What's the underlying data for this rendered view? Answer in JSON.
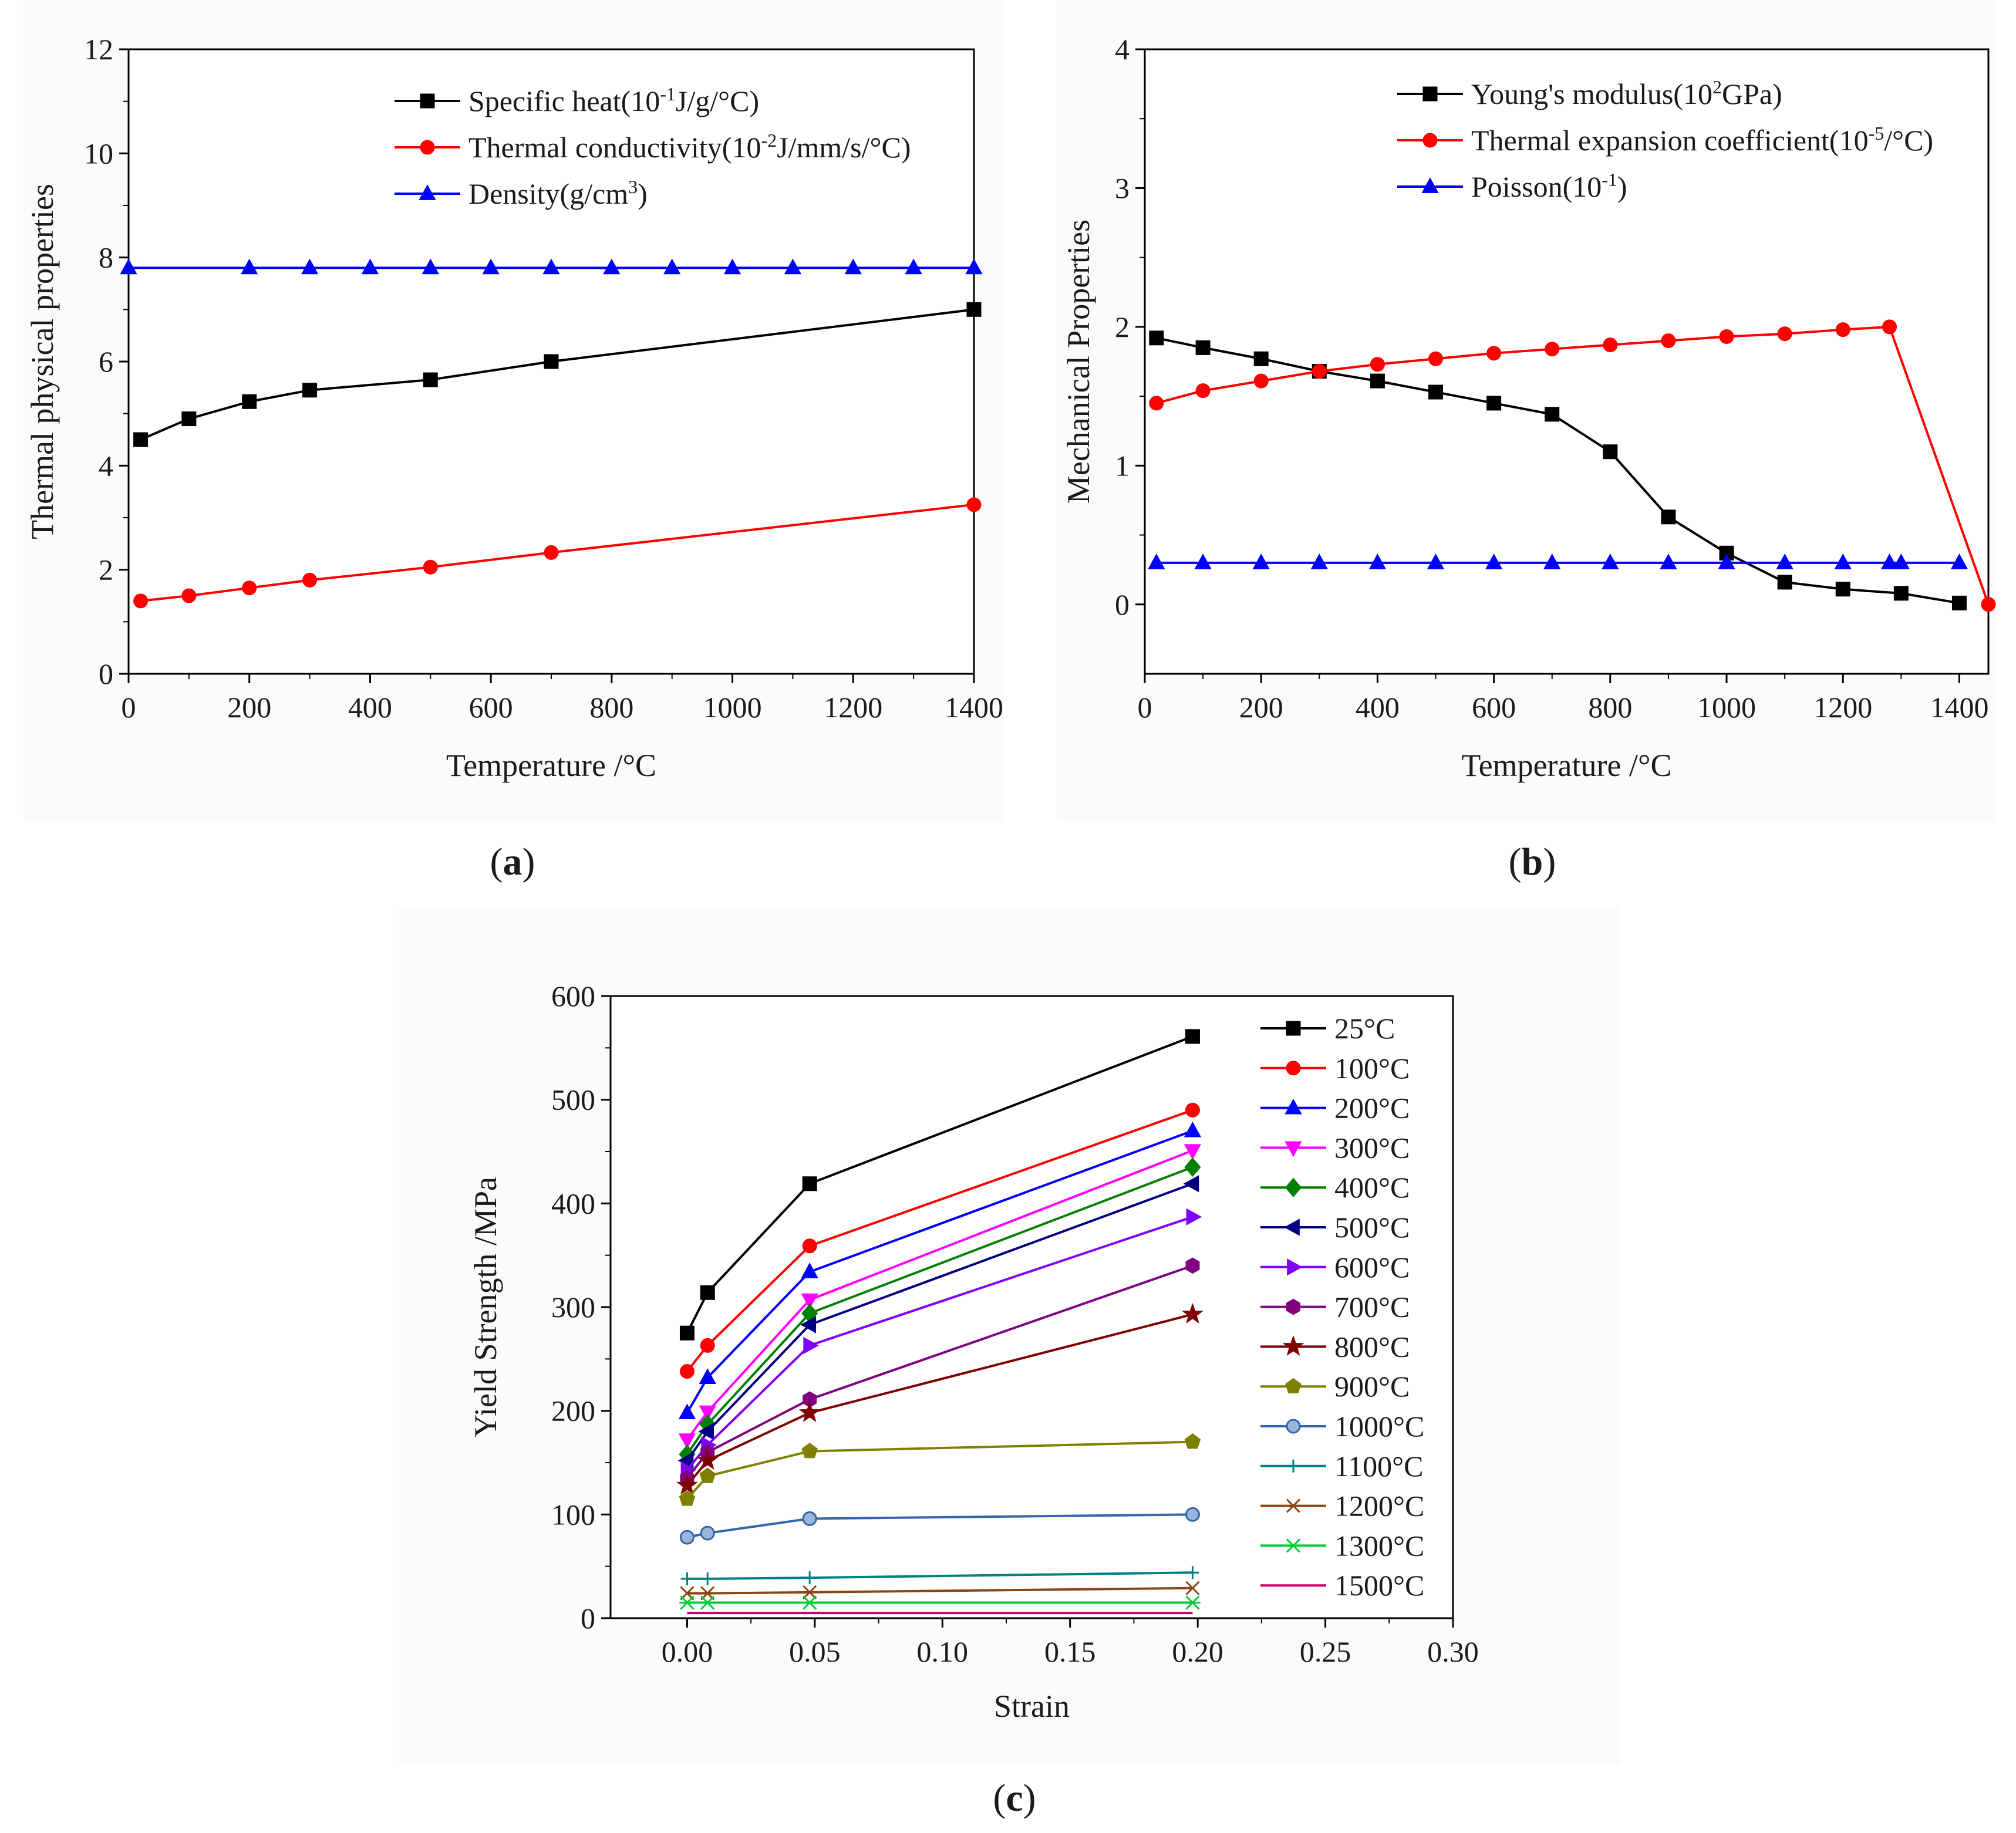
{
  "chart_data": [
    {
      "id": "a",
      "type": "line",
      "panel_label": "(a)",
      "xlabel": "Temperature /°C",
      "ylabel": "Thermal physical properties",
      "xlim": [
        0,
        1400
      ],
      "ylim": [
        0,
        12
      ],
      "xticks": [
        0,
        200,
        400,
        600,
        800,
        1000,
        1200,
        1400
      ],
      "yticks": [
        0,
        2,
        4,
        6,
        8,
        10,
        12
      ],
      "legend_position": "top-right",
      "series": [
        {
          "name": "Specific heat(10-1J/g/°C)",
          "legend": {
            "base": "Specific heat(10",
            "sup": "-1",
            "rest": "J/g/°C)"
          },
          "color": "#000000",
          "marker": "square",
          "x": [
            20,
            100,
            200,
            300,
            500,
            700,
            1400
          ],
          "y": [
            4.5,
            4.9,
            5.23,
            5.45,
            5.65,
            6.0,
            7.0
          ]
        },
        {
          "name": "Thermal conductivity(10-2J/mm/s/°C)",
          "legend": {
            "base": "Thermal conductivity(10",
            "sup": "-2",
            "rest": "J/mm/s/°C)"
          },
          "color": "#ff0000",
          "marker": "circle",
          "x": [
            20,
            100,
            200,
            300,
            500,
            700,
            1400
          ],
          "y": [
            1.4,
            1.5,
            1.65,
            1.8,
            2.05,
            2.33,
            3.25
          ]
        },
        {
          "name": "Density(g/cm3)",
          "legend": {
            "base": "Density(g/cm",
            "sup": "3",
            "rest": ")"
          },
          "color": "#0000ff",
          "marker": "triangle-up",
          "x": [
            0,
            200,
            300,
            400,
            500,
            600,
            700,
            800,
            900,
            1000,
            1100,
            1200,
            1300,
            1400
          ],
          "y": [
            7.8,
            7.8,
            7.8,
            7.8,
            7.8,
            7.8,
            7.8,
            7.8,
            7.8,
            7.8,
            7.8,
            7.8,
            7.8,
            7.8
          ]
        }
      ]
    },
    {
      "id": "b",
      "type": "line",
      "panel_label": "(b)",
      "xlabel": "Temperature /°C",
      "ylabel": "Mechanical Properties",
      "xlim": [
        0,
        1450
      ],
      "ylim": [
        -0.5,
        4
      ],
      "xticks": [
        0,
        200,
        400,
        600,
        800,
        1000,
        1200,
        1400
      ],
      "yticks": [
        0,
        1,
        2,
        3,
        4
      ],
      "legend_position": "top-right",
      "series": [
        {
          "name": "Young's modulus(102GPa)",
          "legend": {
            "base": "Young's modulus(10",
            "sup": "2",
            "rest": "GPa)"
          },
          "color": "#000000",
          "marker": "square",
          "x": [
            20,
            100,
            200,
            300,
            400,
            500,
            600,
            700,
            800,
            900,
            1000,
            1100,
            1200,
            1300,
            1400
          ],
          "y": [
            1.92,
            1.85,
            1.77,
            1.68,
            1.61,
            1.53,
            1.45,
            1.37,
            1.1,
            0.63,
            0.37,
            0.16,
            0.11,
            0.08,
            0.01
          ]
        },
        {
          "name": "Thermal expansion coefficient(10-5/°C)",
          "legend": {
            "base": "Thermal expansion coefficient(10",
            "sup": "-5",
            "rest": "/°C)"
          },
          "color": "#ff0000",
          "marker": "circle",
          "x": [
            20,
            100,
            200,
            300,
            400,
            500,
            600,
            700,
            800,
            900,
            1000,
            1100,
            1200,
            1280,
            1450
          ],
          "y": [
            1.45,
            1.54,
            1.61,
            1.68,
            1.73,
            1.77,
            1.81,
            1.84,
            1.87,
            1.9,
            1.93,
            1.95,
            1.98,
            2.0,
            0.0
          ]
        },
        {
          "name": "Poisson(10-1)",
          "legend": {
            "base": "Poisson(10",
            "sup": "-1",
            "rest": ")"
          },
          "color": "#0000ff",
          "marker": "triangle-up",
          "x": [
            20,
            100,
            200,
            300,
            400,
            500,
            600,
            700,
            800,
            900,
            1000,
            1100,
            1200,
            1280,
            1300,
            1400
          ],
          "y": [
            0.3,
            0.3,
            0.3,
            0.3,
            0.3,
            0.3,
            0.3,
            0.3,
            0.3,
            0.3,
            0.3,
            0.3,
            0.3,
            0.3,
            0.3,
            0.3
          ]
        }
      ]
    },
    {
      "id": "c",
      "type": "line",
      "panel_label": "(c)",
      "xlabel": "Strain",
      "ylabel": "Yield Strength /MPa",
      "xlim": [
        -0.03,
        0.3
      ],
      "ylim": [
        0,
        600
      ],
      "xticks": [
        0,
        0.05,
        0.1,
        0.15,
        0.2,
        0.25,
        0.3
      ],
      "xtick_labels": [
        "0.00",
        "0.05",
        "0.10",
        "0.15",
        "0.20",
        "0.25",
        "0.30"
      ],
      "yticks": [
        0,
        100,
        200,
        300,
        400,
        500,
        600
      ],
      "legend_position": "right",
      "x": [
        0,
        0.008,
        0.048,
        0.198
      ],
      "series": [
        {
          "name": "25°C",
          "color": "#000000",
          "marker": "square",
          "y": [
            275,
            314,
            419,
            561
          ]
        },
        {
          "name": "100°C",
          "color": "#ff0000",
          "marker": "circle",
          "y": [
            238,
            263,
            359,
            490
          ]
        },
        {
          "name": "200°C",
          "color": "#0000ff",
          "marker": "triangle-up",
          "y": [
            198,
            232,
            334,
            470
          ]
        },
        {
          "name": "300°C",
          "color": "#ff00ff",
          "marker": "triangle-down",
          "y": [
            172,
            199,
            307,
            451
          ]
        },
        {
          "name": "400°C",
          "color": "#008000",
          "marker": "diamond",
          "y": [
            158,
            187,
            294,
            435
          ]
        },
        {
          "name": "500°C",
          "color": "#000080",
          "marker": "triangle-left",
          "y": [
            152,
            180,
            283,
            419
          ]
        },
        {
          "name": "600°C",
          "color": "#8000ff",
          "marker": "triangle-right",
          "y": [
            143,
            167,
            263,
            387
          ]
        },
        {
          "name": "700°C",
          "color": "#800080",
          "marker": "hexagon",
          "y": [
            135,
            160,
            211,
            340
          ]
        },
        {
          "name": "800°C",
          "color": "#800000",
          "marker": "star",
          "y": [
            128,
            152,
            198,
            293
          ]
        },
        {
          "name": "900°C",
          "color": "#808000",
          "marker": "pentagon",
          "y": [
            115,
            137,
            161,
            170
          ]
        },
        {
          "name": "1000°C",
          "color": "#3366aa",
          "marker": "circle-open",
          "y": [
            78,
            82,
            96,
            100
          ]
        },
        {
          "name": "1100°C",
          "color": "#008080",
          "marker": "plus",
          "y": [
            38,
            38,
            39,
            44
          ]
        },
        {
          "name": "1200°C",
          "color": "#8b4513",
          "marker": "x",
          "y": [
            24,
            24,
            25,
            29
          ]
        },
        {
          "name": "1300°C",
          "color": "#00cc33",
          "marker": "asterisk",
          "y": [
            15,
            15,
            15,
            15
          ]
        },
        {
          "name": "1500°C",
          "color": "#cc0066",
          "marker": "none",
          "y": [
            5,
            5,
            5,
            5
          ]
        }
      ]
    }
  ]
}
